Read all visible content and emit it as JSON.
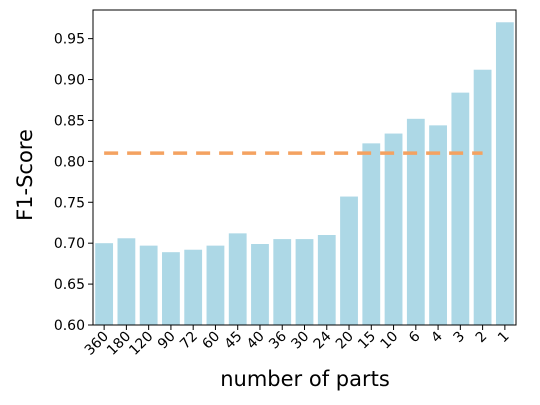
{
  "chart_data": {
    "type": "bar",
    "x_label": "number of parts",
    "y_label": "F1-Score",
    "categories": [
      "360",
      "180",
      "120",
      "90",
      "72",
      "60",
      "45",
      "40",
      "36",
      "30",
      "24",
      "20",
      "15",
      "10",
      "6",
      "4",
      "3",
      "2",
      "1"
    ],
    "values": [
      0.7,
      0.706,
      0.697,
      0.689,
      0.692,
      0.697,
      0.712,
      0.699,
      0.705,
      0.705,
      0.71,
      0.757,
      0.822,
      0.834,
      0.852,
      0.844,
      0.884,
      0.912,
      0.97
    ],
    "color": "#add8e6",
    "reference_line": {
      "value": 0.81,
      "color": "#f4a261"
    },
    "ylim": [
      0.6,
      0.985
    ],
    "yticks": [
      {
        "value": 0.6,
        "label": "0.60"
      },
      {
        "value": 0.65,
        "label": "0.65"
      },
      {
        "value": 0.7,
        "label": "0.70"
      },
      {
        "value": 0.75,
        "label": "0.75"
      },
      {
        "value": 0.8,
        "label": "0.80"
      },
      {
        "value": 0.85,
        "label": "0.85"
      },
      {
        "value": 0.9,
        "label": "0.90"
      },
      {
        "value": 0.95,
        "label": "0.95"
      }
    ],
    "grid": false
  }
}
